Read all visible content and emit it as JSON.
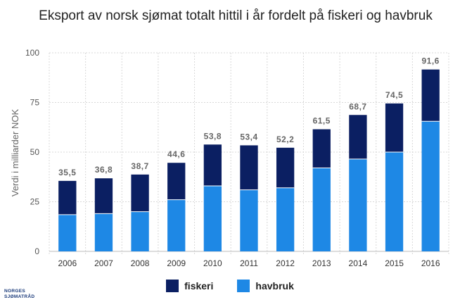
{
  "chart_data": {
    "type": "bar",
    "stacked": true,
    "title": "Eksport av norsk sjømat totalt hittil i år fordelt på fiskeri og havbruk",
    "ylabel": "Verdi i milliarder NOK",
    "xlabel": "",
    "ylim": [
      0,
      100
    ],
    "yticks": [
      0,
      25,
      50,
      75,
      100
    ],
    "grid": true,
    "legend_position": "bottom",
    "categories": [
      "2006",
      "2007",
      "2008",
      "2009",
      "2010",
      "2011",
      "2012",
      "2013",
      "2014",
      "2015",
      "2016"
    ],
    "series": [
      {
        "name": "havbruk",
        "color": "#1e88e5",
        "values": [
          18.5,
          19,
          20,
          26,
          33,
          31,
          32,
          42,
          46.5,
          50,
          65.5
        ]
      },
      {
        "name": "fiskeri",
        "color": "#0b1f62",
        "values": [
          17,
          17.8,
          18.7,
          18.6,
          20.8,
          22.4,
          20.2,
          19.5,
          22.2,
          24.5,
          26.1
        ]
      }
    ],
    "totals": [
      "35,5",
      "36,8",
      "38,7",
      "44,6",
      "53,8",
      "53,4",
      "52,2",
      "61,5",
      "68,7",
      "74,5",
      "91,6"
    ]
  },
  "legend": [
    {
      "label": "fiskeri",
      "color": "#0b1f62"
    },
    {
      "label": "havbruk",
      "color": "#1e88e5"
    }
  ],
  "brand": {
    "line1": "NORGES",
    "line2": "SJØMATRÅD"
  }
}
